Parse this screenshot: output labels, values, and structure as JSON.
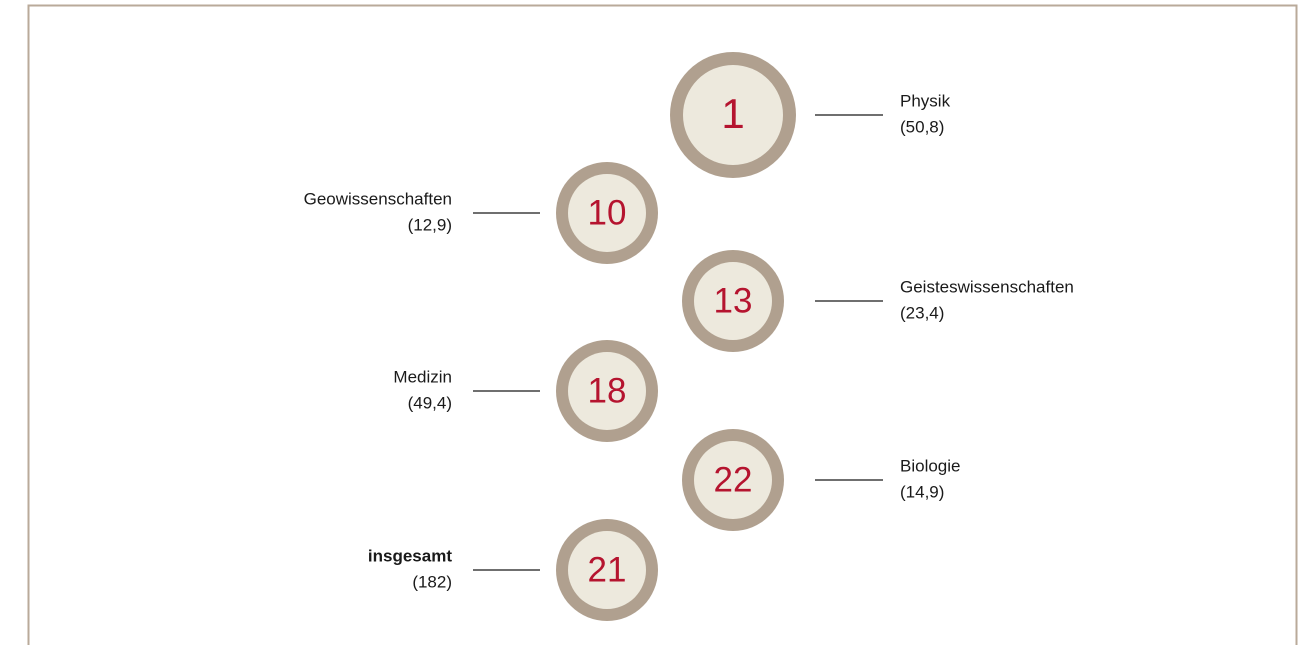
{
  "items": [
    {
      "rank": "1",
      "name": "Physik",
      "value": "(50,8)"
    },
    {
      "rank": "10",
      "name": "Geowissenschaften",
      "value": "(12,9)"
    },
    {
      "rank": "13",
      "name": "Geisteswissenschaften",
      "value": "(23,4)"
    },
    {
      "rank": "18",
      "name": "Medizin",
      "value": "(49,4)"
    },
    {
      "rank": "22",
      "name": "Biologie",
      "value": "(14,9)"
    },
    {
      "rank": "21",
      "name": "insgesamt",
      "value": "(182)",
      "bold": true
    }
  ]
}
